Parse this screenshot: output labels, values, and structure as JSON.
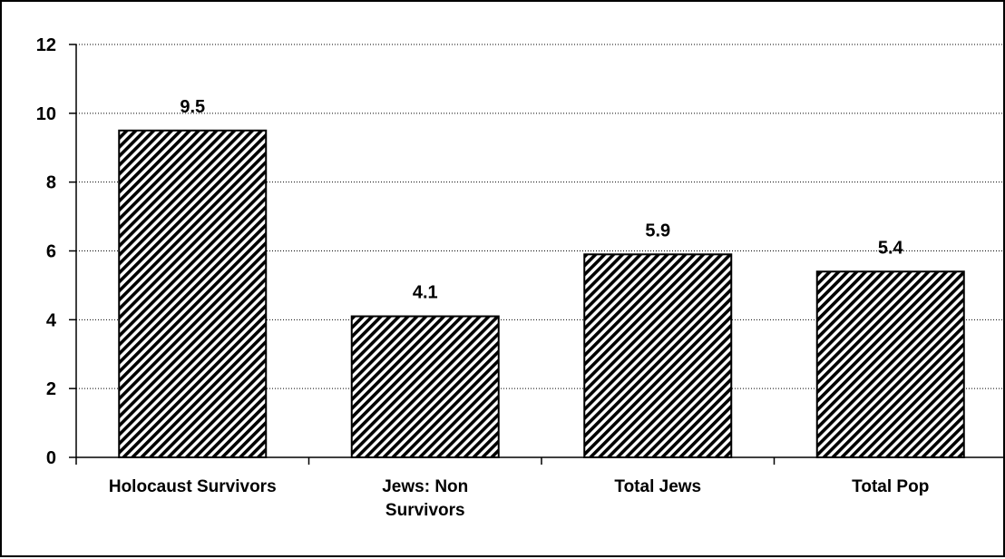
{
  "chart_data": {
    "type": "bar",
    "title": "",
    "xlabel": "",
    "ylabel": "",
    "categories": [
      [
        "Holocaust Survivors"
      ],
      [
        "Jews: Non",
        "Survivors"
      ],
      [
        "Total Jews"
      ],
      [
        "Total Pop"
      ]
    ],
    "values": [
      9.5,
      4.1,
      5.9,
      5.4
    ],
    "value_labels": [
      "9.5",
      "4.1",
      "5.9",
      "5.4"
    ],
    "ylim": [
      0,
      12
    ],
    "yticks": [
      0,
      2,
      4,
      6,
      8,
      10,
      12
    ],
    "grid": true,
    "grid_style": "dotted",
    "bar_fill": "diagonal-hatch",
    "colors": {
      "bar_stroke": "#000000",
      "hatch": "#000000",
      "background": "#ffffff",
      "grid": "#000000"
    }
  }
}
